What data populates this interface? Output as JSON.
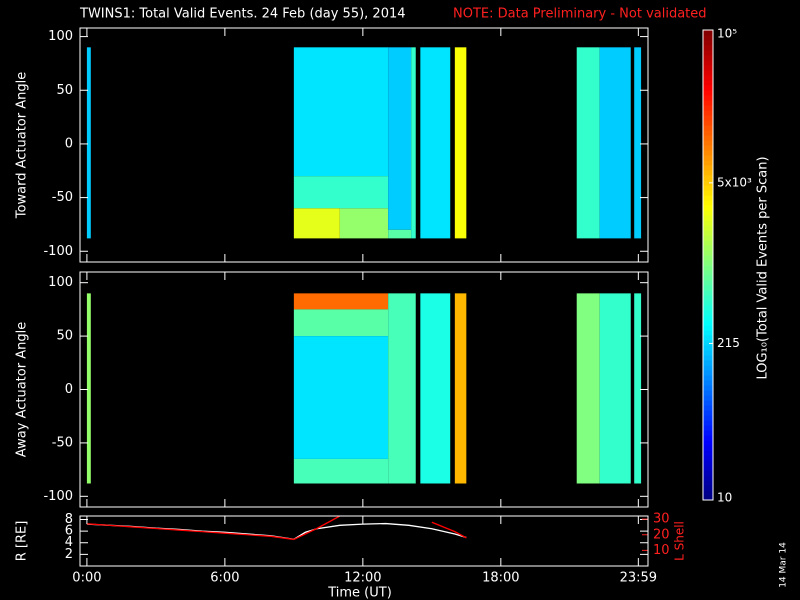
{
  "title": "TWINS1: Total Valid Events. 24 Feb (day  55), 2014",
  "note": "NOTE: Data Preliminary - Not validated",
  "date_stamp": "14 Mar 14",
  "xlim": [
    -0.3,
    24.4
  ],
  "xticks": [
    {
      "value": 0,
      "label": "0:00"
    },
    {
      "value": 6,
      "label": "6:00"
    },
    {
      "value": 12,
      "label": "12:00"
    },
    {
      "value": 18,
      "label": "18:00"
    },
    {
      "value": 23.98,
      "label": "23:59"
    }
  ],
  "xlabel": "Time (UT)",
  "colorbar": {
    "label": "LOG₁₀(Total Valid Events per Scan)",
    "lim": [
      10,
      100000
    ],
    "log": true,
    "ticks": [
      10,
      215,
      {
        "value": 5000,
        "label": "5x10³"
      },
      {
        "value": 100000,
        "label": "10⁵"
      }
    ]
  },
  "chart_data": [
    {
      "type": "heatmap",
      "ylabel": "Toward Actuator Angle",
      "ylim": [
        -110,
        108
      ],
      "yticks": [
        -100,
        -50,
        0,
        50,
        100
      ],
      "segments": [
        {
          "x": [
            0,
            0.17
          ],
          "y": [
            -88,
            90
          ],
          "value": 200
        },
        {
          "x": [
            9,
            13.1
          ],
          "y": [
            -30,
            90
          ],
          "value": 250
        },
        {
          "x": [
            9,
            13.1
          ],
          "y": [
            -60,
            -30
          ],
          "value": 500
        },
        {
          "x": [
            9,
            11
          ],
          "y": [
            -88,
            -60
          ],
          "value": 2500
        },
        {
          "x": [
            11,
            13.1
          ],
          "y": [
            -88,
            -60
          ],
          "value": 1200
        },
        {
          "x": [
            13.1,
            14.1
          ],
          "y": [
            -80,
            90
          ],
          "value": 200
        },
        {
          "x": [
            13.1,
            14.1
          ],
          "y": [
            -88,
            -80
          ],
          "value": 700
        },
        {
          "x": [
            14.1,
            14.3
          ],
          "y": [
            -88,
            90
          ],
          "value": 500
        },
        {
          "x": [
            14.5,
            15.8
          ],
          "y": [
            -88,
            90
          ],
          "value": 250
        },
        {
          "x": [
            16.0,
            16.5
          ],
          "y": [
            -88,
            90
          ],
          "value": 3000
        },
        {
          "x": [
            21.3,
            22.3
          ],
          "y": [
            -88,
            90
          ],
          "value": 500
        },
        {
          "x": [
            22.3,
            23.65
          ],
          "y": [
            -88,
            90
          ],
          "value": 200
        },
        {
          "x": [
            23.8,
            24.1
          ],
          "y": [
            -88,
            90
          ],
          "value": 200
        }
      ]
    },
    {
      "type": "heatmap",
      "ylabel": "Away Actuator Angle",
      "ylim": [
        -110,
        110
      ],
      "yticks": [
        -100,
        -50,
        0,
        50,
        100
      ],
      "segments": [
        {
          "x": [
            0,
            0.17
          ],
          "y": [
            -88,
            90
          ],
          "value": 1200
        },
        {
          "x": [
            9,
            13.1
          ],
          "y": [
            75,
            90
          ],
          "value": 12000
        },
        {
          "x": [
            9,
            13.1
          ],
          "y": [
            50,
            75
          ],
          "value": 700
        },
        {
          "x": [
            9,
            13.1
          ],
          "y": [
            -65,
            50
          ],
          "value": 250
        },
        {
          "x": [
            9,
            13.1
          ],
          "y": [
            -88,
            -65
          ],
          "value": 600
        },
        {
          "x": [
            13.1,
            14.3
          ],
          "y": [
            -88,
            90
          ],
          "value": 600
        },
        {
          "x": [
            14.5,
            15.8
          ],
          "y": [
            -88,
            90
          ],
          "value": 400
        },
        {
          "x": [
            16.0,
            16.5
          ],
          "y": [
            -88,
            90
          ],
          "value": 6000
        },
        {
          "x": [
            21.3,
            22.3
          ],
          "y": [
            -88,
            90
          ],
          "value": 1000
        },
        {
          "x": [
            22.3,
            23.65
          ],
          "y": [
            -88,
            90
          ],
          "value": 500
        },
        {
          "x": [
            23.8,
            24.1
          ],
          "y": [
            -88,
            90
          ],
          "value": 500
        }
      ]
    },
    {
      "type": "line",
      "ylabel": "R [RE]",
      "ylim": [
        0,
        8.6
      ],
      "yticks": [
        2,
        4,
        6,
        8
      ],
      "y2label": "L Shell",
      "y2lim": [
        0,
        32
      ],
      "y2ticks": [
        10,
        20,
        30
      ],
      "series": [
        {
          "name": "R",
          "color": "#ffffff",
          "x": [
            0,
            1,
            2,
            3,
            4,
            5,
            6,
            7,
            8,
            9,
            9.5,
            10,
            11,
            12,
            13,
            14,
            15,
            16,
            16.5
          ],
          "values": [
            7.2,
            7.0,
            6.8,
            6.5,
            6.3,
            6.0,
            5.8,
            5.5,
            5.2,
            4.6,
            5.8,
            6.4,
            7.0,
            7.2,
            7.3,
            7.0,
            6.4,
            5.5,
            4.9
          ]
        },
        {
          "name": "L Shell",
          "color": "#ff0000",
          "axis": "y2",
          "x": [
            0,
            1,
            2,
            3,
            4,
            5,
            6,
            7,
            8,
            9,
            10,
            11,
            14.7,
            15,
            16,
            16.5
          ],
          "values": [
            27,
            26,
            25,
            24,
            23,
            22,
            21,
            20,
            19,
            17,
            24,
            32,
            null,
            28,
            22,
            18
          ]
        }
      ]
    }
  ]
}
